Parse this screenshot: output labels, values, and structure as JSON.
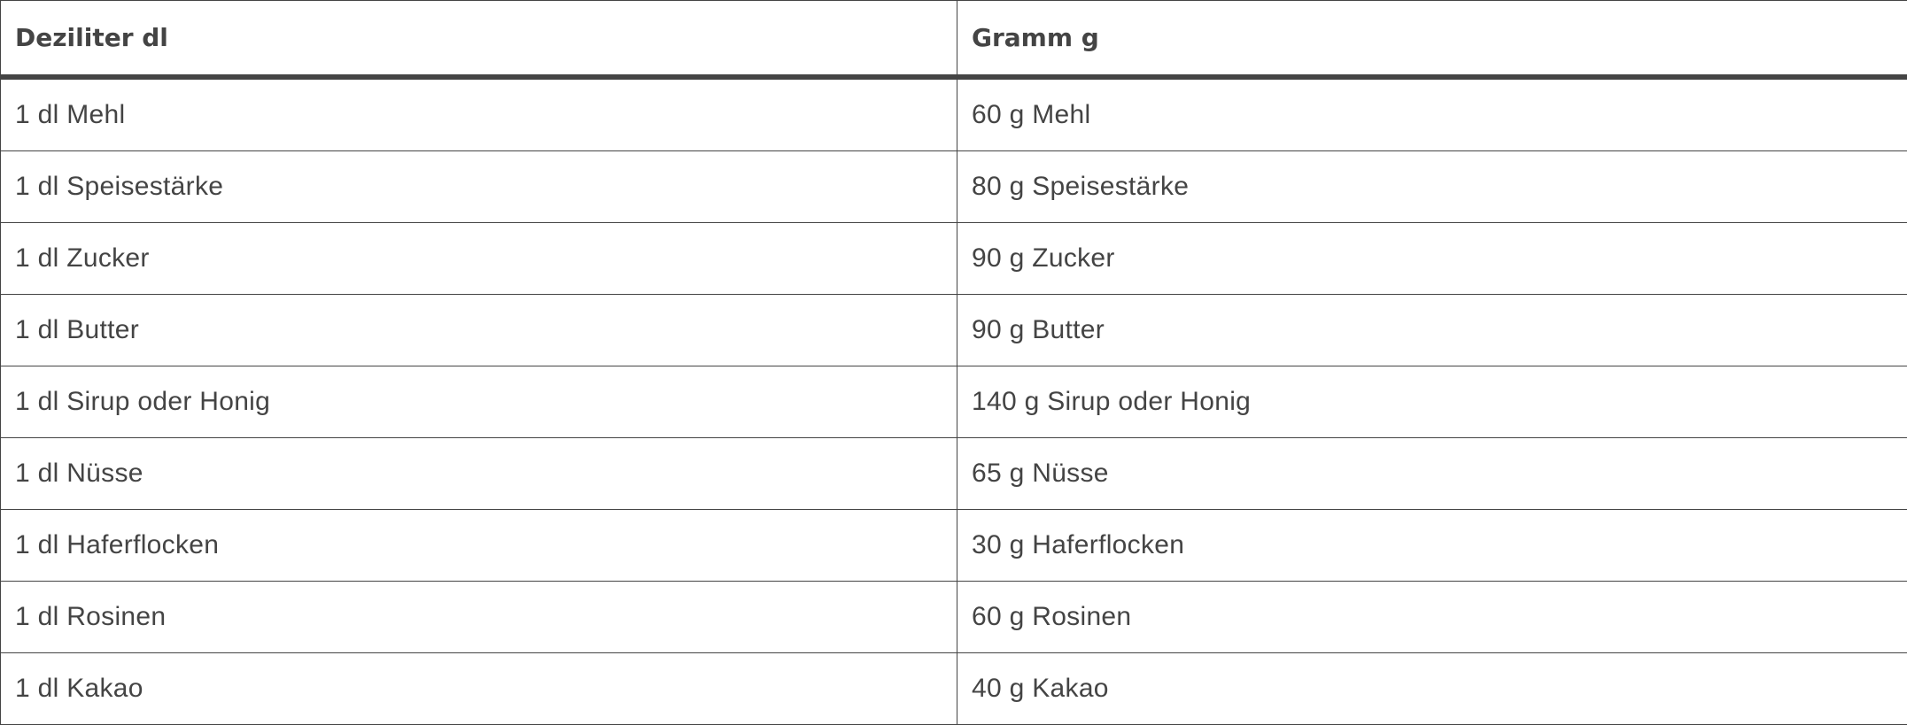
{
  "table": {
    "headers": [
      "Deziliter dl",
      "Gramm g"
    ],
    "rows": [
      [
        "1 dl Mehl",
        "60 g Mehl"
      ],
      [
        "1 dl Speisestärke",
        "80 g Speisestärke"
      ],
      [
        "1 dl Zucker",
        "90 g Zucker"
      ],
      [
        "1 dl Butter",
        "90 g Butter"
      ],
      [
        "1 dl Sirup oder Honig",
        "140 g Sirup oder Honig"
      ],
      [
        "1 dl Nüsse",
        "65 g Nüsse"
      ],
      [
        "1 dl Haferflocken",
        "30 g Haferflocken"
      ],
      [
        "1 dl Rosinen",
        "60 g Rosinen"
      ],
      [
        "1 dl Kakao",
        "40 g Kakao"
      ]
    ]
  }
}
